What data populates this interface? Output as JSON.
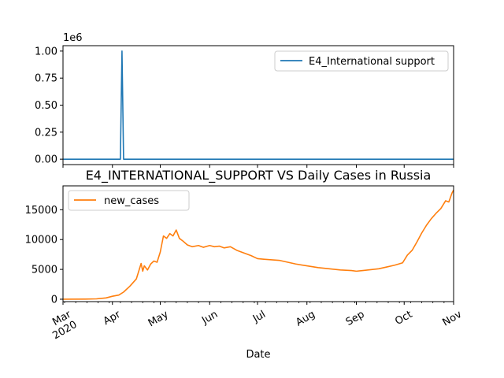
{
  "chart_data": [
    {
      "type": "line",
      "title": "",
      "xlabel": "",
      "ylabel": "",
      "multiplier_label": "1e6",
      "ylim": [
        -0.05,
        1.05
      ],
      "yticks": [
        0.0,
        0.25,
        0.5,
        0.75,
        1.0
      ],
      "ytick_labels": [
        "0.00",
        "0.25",
        "0.50",
        "0.75",
        "1.00"
      ],
      "legend": {
        "position": "top-right",
        "entries": [
          "E4_International support"
        ]
      },
      "series": [
        {
          "name": "E4_International support",
          "color": "#1f77b4",
          "x": [
            "2020-03-01",
            "2020-04-06",
            "2020-04-07",
            "2020-04-08",
            "2020-11-01"
          ],
          "values": [
            0,
            0,
            1.0,
            0,
            0
          ]
        }
      ]
    },
    {
      "type": "line",
      "title": "E4_INTERNATIONAL_SUPPORT VS Daily Cases in Russia",
      "xlabel": "Date",
      "ylabel": "",
      "ylim": [
        -400,
        19000
      ],
      "yticks": [
        0,
        5000,
        10000,
        15000
      ],
      "ytick_labels": [
        "0",
        "5000",
        "10000",
        "15000"
      ],
      "x_range": [
        "2020-03-01",
        "2020-11-01"
      ],
      "xtick_labels": [
        "Mar\n2020",
        "Apr",
        "May",
        "Jun",
        "Jul",
        "Aug",
        "Sep",
        "Oct",
        "Nov"
      ],
      "legend": {
        "position": "top-left",
        "entries": [
          "new_cases"
        ]
      },
      "series": [
        {
          "name": "new_cases",
          "color": "#ff7f0e",
          "x": [
            "2020-03-01",
            "2020-03-15",
            "2020-03-22",
            "2020-03-28",
            "2020-04-01",
            "2020-04-05",
            "2020-04-08",
            "2020-04-12",
            "2020-04-16",
            "2020-04-19",
            "2020-04-20",
            "2020-04-21",
            "2020-04-23",
            "2020-04-25",
            "2020-04-27",
            "2020-04-29",
            "2020-05-01",
            "2020-05-03",
            "2020-05-05",
            "2020-05-07",
            "2020-05-09",
            "2020-05-11",
            "2020-05-13",
            "2020-05-15",
            "2020-05-18",
            "2020-05-21",
            "2020-05-25",
            "2020-05-28",
            "2020-06-01",
            "2020-06-04",
            "2020-06-07",
            "2020-06-10",
            "2020-06-14",
            "2020-06-18",
            "2020-06-22",
            "2020-06-27",
            "2020-07-01",
            "2020-07-05",
            "2020-07-10",
            "2020-07-15",
            "2020-07-20",
            "2020-07-25",
            "2020-08-01",
            "2020-08-08",
            "2020-08-15",
            "2020-08-22",
            "2020-08-29",
            "2020-09-01",
            "2020-09-05",
            "2020-09-10",
            "2020-09-15",
            "2020-09-20",
            "2020-09-25",
            "2020-09-30",
            "2020-10-03",
            "2020-10-06",
            "2020-10-09",
            "2020-10-12",
            "2020-10-15",
            "2020-10-18",
            "2020-10-21",
            "2020-10-24",
            "2020-10-27",
            "2020-10-29",
            "2020-10-31",
            "2020-11-01"
          ],
          "values": [
            0,
            20,
            60,
            220,
            500,
            700,
            1200,
            2200,
            3400,
            6000,
            4700,
            5600,
            4900,
            5900,
            6400,
            6200,
            7900,
            10600,
            10200,
            11000,
            10600,
            11600,
            10200,
            9800,
            9100,
            8800,
            9000,
            8700,
            9000,
            8800,
            8900,
            8600,
            8800,
            8200,
            7800,
            7300,
            6800,
            6700,
            6600,
            6500,
            6200,
            5900,
            5600,
            5300,
            5100,
            4900,
            4800,
            4700,
            4800,
            4950,
            5100,
            5400,
            5700,
            6100,
            7400,
            8200,
            9600,
            11100,
            12400,
            13500,
            14400,
            15200,
            16500,
            16300,
            17800,
            18300
          ]
        }
      ]
    }
  ]
}
